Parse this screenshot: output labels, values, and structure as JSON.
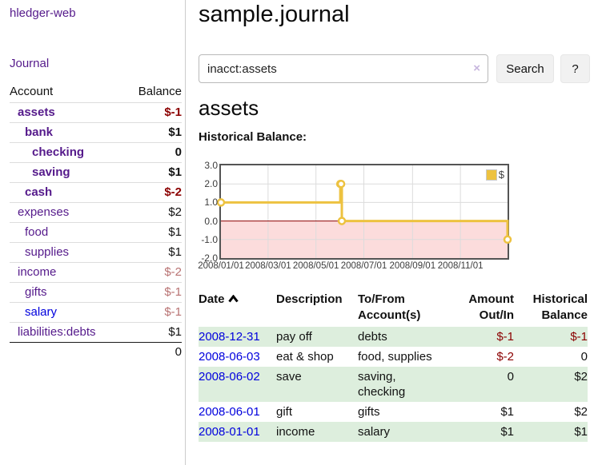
{
  "app_title": "hledger-web",
  "palette": {
    "link_purple": "#551a8b",
    "link_blue": "#0000dd",
    "negative_red": "#8b0000",
    "negative_dim_red": "#b87272",
    "row_stripe_green": "#ddeedd"
  },
  "sidebar": {
    "journal_link": "Journal",
    "headers": {
      "account": "Account",
      "balance": "Balance"
    },
    "accounts": [
      {
        "name": "assets",
        "balance": "$-1",
        "level": 0,
        "bold": true,
        "balance_style": "neg-strong"
      },
      {
        "name": "bank",
        "balance": "$1",
        "level": 1,
        "bold": true,
        "balance_style": "pos"
      },
      {
        "name": "checking",
        "balance": "0",
        "level": 2,
        "bold": true,
        "balance_style": "pos"
      },
      {
        "name": "saving",
        "balance": "$1",
        "level": 2,
        "bold": true,
        "balance_style": "pos"
      },
      {
        "name": "cash",
        "balance": "$-2",
        "level": 1,
        "bold": true,
        "balance_style": "neg-strong"
      },
      {
        "name": "expenses",
        "balance": "$2",
        "level": 0,
        "bold": false,
        "balance_style": "pos"
      },
      {
        "name": "food",
        "balance": "$1",
        "level": 1,
        "bold": false,
        "balance_style": "pos"
      },
      {
        "name": "supplies",
        "balance": "$1",
        "level": 1,
        "bold": false,
        "balance_style": "pos"
      },
      {
        "name": "income",
        "balance": "$-2",
        "level": 0,
        "bold": false,
        "balance_style": "neg-dim"
      },
      {
        "name": "gifts",
        "balance": "$-1",
        "level": 1,
        "bold": false,
        "balance_style": "neg-dim"
      },
      {
        "name": "salary",
        "balance": "$-1",
        "level": 1,
        "bold": false,
        "balance_style": "neg-dim",
        "link_style": "unvisited"
      },
      {
        "name": "liabilities:debts",
        "balance": "$1",
        "level": 0,
        "bold": false,
        "balance_style": "pos"
      }
    ],
    "total": "0"
  },
  "header": {
    "title": "sample.journal"
  },
  "search": {
    "value": "inacct:assets",
    "clear_icon": "×",
    "button_label": "Search",
    "help_label": "?"
  },
  "account_page": {
    "heading": "assets",
    "chart_label": "Historical Balance:"
  },
  "chart_data": {
    "type": "line",
    "step": true,
    "title": "Historical Balance",
    "series": [
      {
        "name": "$",
        "color": "#edc240",
        "points": [
          [
            "2008/01/01",
            1
          ],
          [
            "2008/06/01",
            2
          ],
          [
            "2008/06/02",
            2
          ],
          [
            "2008/06/03",
            0
          ],
          [
            "2008/12/31",
            -1
          ]
        ]
      }
    ],
    "x_range": [
      "2008/01/01",
      "2008/12/31"
    ],
    "x_ticks": [
      "2008/01/01",
      "2008/03/01",
      "2008/05/01",
      "2008/07/01",
      "2008/09/01",
      "2008/11/01"
    ],
    "y_ticks": [
      3,
      2,
      1,
      0,
      -1,
      -2
    ],
    "ylim": [
      -2,
      3
    ],
    "legend": {
      "label": "$",
      "position": "top-right"
    },
    "grid": true,
    "grid_color": "#dcdcdc",
    "border_color": "#545454",
    "negative_region_color": "#fcdcdc",
    "zero_line_color": "#8b0000"
  },
  "register": {
    "columns": [
      {
        "label": "Date",
        "sort": "asc"
      },
      {
        "label": "Description"
      },
      {
        "label": "To/From Account(s)"
      },
      {
        "label": "Amount Out/In",
        "align": "right"
      },
      {
        "label": "Historical Balance",
        "align": "right"
      }
    ],
    "rows": [
      {
        "date": "2008-12-31",
        "description": "pay off",
        "accounts": "debts",
        "amount": "$-1",
        "balance": "$-1",
        "amount_neg": true,
        "balance_neg": true,
        "shade": true
      },
      {
        "date": "2008-06-03",
        "description": "eat & shop",
        "accounts": "food, supplies",
        "amount": "$-2",
        "balance": "0",
        "amount_neg": true,
        "balance_neg": false,
        "shade": false
      },
      {
        "date": "2008-06-02",
        "description": "save",
        "accounts": "saving, checking",
        "amount": "0",
        "balance": "$2",
        "amount_neg": false,
        "balance_neg": false,
        "shade": true
      },
      {
        "date": "2008-06-01",
        "description": "gift",
        "accounts": "gifts",
        "amount": "$1",
        "balance": "$2",
        "amount_neg": false,
        "balance_neg": false,
        "shade": false
      },
      {
        "date": "2008-01-01",
        "description": "income",
        "accounts": "salary",
        "amount": "$1",
        "balance": "$1",
        "amount_neg": false,
        "balance_neg": false,
        "shade": true
      }
    ]
  }
}
